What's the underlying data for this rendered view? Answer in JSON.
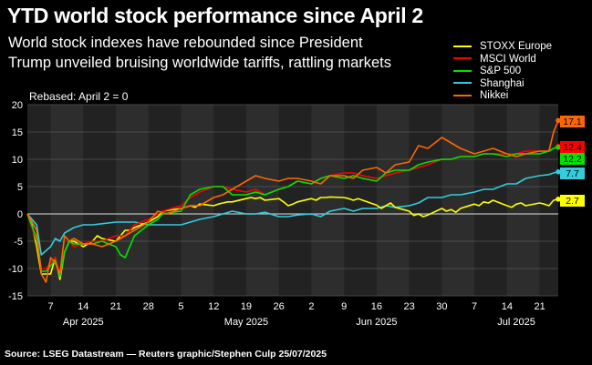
{
  "header": {
    "title": "YTD world stock performance since April 2",
    "subtitle_line1": "World stock indexes have rebounded since President",
    "subtitle_line2": "Trump unveiled bruising worldwide tariffs, rattling markets"
  },
  "footer": {
    "source": "Source: LSEG Datastream — Reuters graphic/Stephen Culp 25/07/2025"
  },
  "chart_data": {
    "type": "line",
    "title": "YTD world stock performance since April 2",
    "annotation": "Rebased: April 2 = 0",
    "ylim": [
      -15,
      20
    ],
    "yticks": [
      -15,
      -10,
      -5,
      0,
      5,
      10,
      15,
      20
    ],
    "x_range": [
      "2025-04-02",
      "2025-07-25"
    ],
    "day_ticks": [
      {
        "label": "7",
        "day": 5
      },
      {
        "label": "14",
        "day": 12
      },
      {
        "label": "21",
        "day": 19
      },
      {
        "label": "28",
        "day": 26
      },
      {
        "label": "5",
        "day": 33
      },
      {
        "label": "12",
        "day": 40
      },
      {
        "label": "19",
        "day": 47
      },
      {
        "label": "26",
        "day": 54
      },
      {
        "label": "2",
        "day": 61
      },
      {
        "label": "9",
        "day": 68
      },
      {
        "label": "16",
        "day": 75
      },
      {
        "label": "23",
        "day": 82
      },
      {
        "label": "30",
        "day": 89
      },
      {
        "label": "7",
        "day": 96
      },
      {
        "label": "14",
        "day": 103
      },
      {
        "label": "21",
        "day": 110
      }
    ],
    "month_labels": [
      {
        "label": "Apr 2025",
        "day": 12
      },
      {
        "label": "May 2025",
        "day": 47
      },
      {
        "label": "Jun 2025",
        "day": 75
      },
      {
        "label": "Jul 2025",
        "day": 105
      }
    ],
    "series": [
      {
        "name": "STOXX Europe",
        "color": "#ffff00",
        "end_label": "2.7",
        "x": [
          0,
          1,
          2,
          3,
          4,
          5,
          6,
          7,
          8,
          9,
          10,
          12,
          13,
          14,
          15,
          16,
          19,
          20,
          21,
          22,
          23,
          26,
          27,
          28,
          29,
          33,
          35,
          36,
          37,
          40,
          41,
          42,
          43,
          44,
          47,
          48,
          49,
          50,
          51,
          54,
          55,
          56,
          57,
          58,
          61,
          62,
          63,
          64,
          65,
          68,
          69,
          70,
          71,
          72,
          75,
          76,
          77,
          78,
          79,
          82,
          83,
          84,
          85,
          86,
          89,
          90,
          91,
          92,
          93,
          96,
          97,
          98,
          99,
          100,
          103,
          104,
          105,
          106,
          107,
          110,
          111,
          112,
          113,
          114
        ],
        "values": [
          0,
          -2,
          -6,
          -11,
          -11,
          -11,
          -8,
          -12,
          -7,
          -5,
          -5,
          -6,
          -5.5,
          -5,
          -4,
          -4.5,
          -5,
          -4,
          -3,
          -3,
          -2.5,
          -1.5,
          -1,
          -0.5,
          0.5,
          1,
          1.5,
          1.2,
          1.8,
          1.5,
          1.8,
          2,
          2.2,
          2.2,
          2.8,
          3,
          2.8,
          3,
          2.5,
          2.8,
          2.2,
          1.5,
          1.8,
          2.2,
          2.8,
          2.5,
          3,
          3,
          3.1,
          3,
          2.8,
          2.5,
          2.8,
          2.5,
          1.6,
          1,
          1.5,
          2,
          1.2,
          0.5,
          -0.3,
          0,
          -0.5,
          -0.2,
          1,
          0.5,
          0.8,
          0.3,
          1,
          1.8,
          1.5,
          2.2,
          2,
          2.5,
          1.5,
          1.2,
          1.8,
          2,
          1.5,
          2,
          1.8,
          1.5,
          2.5,
          2.7
        ]
      },
      {
        "name": "MSCI World",
        "color": "#ff0000",
        "end_label": "12.4",
        "x": [
          0,
          2,
          3,
          4,
          5,
          6,
          7,
          8,
          9,
          10,
          12,
          14,
          16,
          19,
          21,
          23,
          26,
          28,
          29,
          33,
          35,
          37,
          40,
          42,
          44,
          47,
          49,
          51,
          54,
          56,
          58,
          61,
          63,
          65,
          68,
          70,
          72,
          75,
          77,
          79,
          82,
          84,
          86,
          89,
          91,
          93,
          96,
          98,
          100,
          103,
          105,
          107,
          110,
          112,
          113,
          114
        ],
        "values": [
          0,
          -5,
          -10,
          -10,
          -9,
          -8,
          -11,
          -7,
          -5,
          -6,
          -5.5,
          -5,
          -5,
          -4,
          -4,
          -2,
          -1,
          0,
          0.5,
          1.5,
          3,
          4,
          5,
          5,
          4.5,
          4,
          4.5,
          3.5,
          4.5,
          5,
          6,
          5.5,
          6.5,
          7,
          7.5,
          7.5,
          7,
          6.5,
          7,
          7.5,
          8,
          8.5,
          9,
          10,
          10,
          10.5,
          10.5,
          11,
          11,
          11,
          11,
          11.5,
          11.5,
          11.5,
          12,
          12.4
        ]
      },
      {
        "name": "S&P 500",
        "color": "#00e400",
        "end_label": "12.2",
        "x": [
          0,
          2,
          3,
          4,
          5,
          6,
          7,
          8,
          9,
          10,
          12,
          14,
          16,
          19,
          20,
          21,
          23,
          26,
          28,
          29,
          33,
          35,
          37,
          40,
          42,
          44,
          47,
          49,
          51,
          54,
          56,
          58,
          61,
          63,
          65,
          68,
          70,
          72,
          75,
          77,
          79,
          82,
          84,
          86,
          89,
          91,
          93,
          96,
          98,
          100,
          103,
          105,
          107,
          110,
          112,
          113,
          114
        ],
        "values": [
          0,
          -4.5,
          -10.5,
          -10.5,
          -9.5,
          -8.5,
          -11.5,
          -7,
          -5,
          -5.5,
          -5.5,
          -5.5,
          -5,
          -6,
          -7.5,
          -8,
          -4,
          -2,
          -1,
          0,
          0.5,
          3.5,
          4.5,
          5,
          5,
          3.5,
          3.5,
          4,
          3.5,
          4.5,
          5,
          6,
          5.5,
          6.5,
          7,
          6.5,
          7,
          6.5,
          6,
          7.5,
          8,
          8,
          9,
          9.5,
          10,
          10,
          10.5,
          10.5,
          11,
          11,
          10.5,
          11,
          11,
          11,
          11.5,
          12,
          12.2
        ]
      },
      {
        "name": "Shanghai",
        "color": "#33ccdd",
        "end_label": "7.7",
        "x": [
          0,
          2,
          3,
          5,
          6,
          7,
          8,
          9,
          10,
          12,
          14,
          16,
          19,
          21,
          23,
          26,
          28,
          33,
          35,
          37,
          40,
          42,
          44,
          47,
          49,
          51,
          54,
          56,
          58,
          61,
          63,
          65,
          68,
          70,
          72,
          75,
          77,
          79,
          82,
          84,
          86,
          89,
          91,
          93,
          96,
          98,
          100,
          103,
          105,
          107,
          110,
          112,
          113,
          114
        ],
        "values": [
          0,
          -2,
          -7.5,
          -6,
          -4.5,
          -5,
          -3.5,
          -3,
          -2.5,
          -2,
          -2,
          -1.8,
          -1.5,
          -1.5,
          -1.5,
          -2,
          -2,
          -2,
          -1.5,
          -1,
          -0.5,
          0,
          0.5,
          0,
          0,
          0.3,
          -0.5,
          -0.5,
          -0.2,
          0,
          -0.5,
          0.5,
          1,
          0.5,
          1,
          1,
          1.5,
          1.2,
          1.5,
          2,
          3,
          3,
          3.5,
          3.5,
          4,
          4.5,
          4.5,
          5.5,
          5.5,
          6.5,
          7,
          7.2,
          7.5,
          7.7
        ]
      },
      {
        "name": "Nikkei",
        "color": "#ff6600",
        "end_label": "17.1",
        "x": [
          0,
          2,
          3,
          4,
          5,
          6,
          7,
          8,
          9,
          10,
          12,
          14,
          16,
          19,
          21,
          23,
          26,
          28,
          30,
          33,
          35,
          37,
          40,
          42,
          44,
          47,
          49,
          51,
          54,
          56,
          58,
          61,
          63,
          65,
          68,
          70,
          72,
          75,
          77,
          79,
          82,
          84,
          86,
          89,
          91,
          93,
          96,
          98,
          100,
          103,
          105,
          107,
          110,
          112,
          113,
          114
        ],
        "values": [
          0,
          -3,
          -11,
          -12.5,
          -8,
          -9,
          -11,
          -4,
          -5,
          -4.5,
          -5.5,
          -5.5,
          -6,
          -5,
          -4,
          -3,
          -1.5,
          0.5,
          0,
          1,
          1.5,
          1.5,
          3,
          3.5,
          4.5,
          6,
          7,
          6.5,
          6,
          6.5,
          6.5,
          6,
          5.5,
          7,
          7,
          6.5,
          8,
          8.5,
          7.5,
          9,
          9.5,
          12.5,
          12,
          14,
          13,
          12,
          11,
          11.5,
          12,
          11,
          10.5,
          11,
          11.5,
          11.5,
          15,
          17.1
        ]
      }
    ]
  }
}
